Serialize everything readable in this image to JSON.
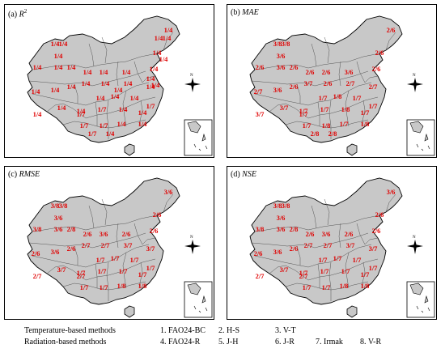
{
  "panels": [
    {
      "letter": "(a)",
      "metric": "R",
      "sup": "2",
      "labels": [
        "1/4",
        "1/4",
        "1/4",
        "1/4",
        "1/4",
        "1/4",
        "1/4",
        "1/4",
        "1/4",
        "1/4",
        "1/4",
        "1/4",
        "1/4",
        "1/4",
        "1/4",
        "1/4",
        "1/4",
        "1/4",
        "1/4",
        "1/4",
        "1/4",
        "1/7",
        "1/4",
        "1/4",
        "1/4",
        "1/7",
        "1/4",
        "1/7",
        "1/4",
        "1/4",
        "1/7",
        "1/7",
        "1/4",
        "1/4",
        "1/7",
        "1/4",
        "1/4",
        "1/4",
        "1/4",
        "1/4",
        "1/4",
        "1/4"
      ]
    },
    {
      "letter": "(b)",
      "metric": "MAE",
      "sup": "",
      "labels": [
        "3/8",
        "3/8",
        "3/6",
        "2/6",
        "3/6",
        "2/6",
        "2/6",
        "2/6",
        "3/6",
        "2/6",
        "2/6",
        "2/6",
        "2/7",
        "3/6",
        "2/6",
        "3/7",
        "2/6",
        "2/7",
        "2/7",
        "3/7",
        "3/7",
        "1/7",
        "1/7",
        "1/8",
        "1/7",
        "1/7",
        "1/7",
        "1/7",
        "1/8",
        "1/7",
        "1/7",
        "1/8",
        "1/7",
        "1/8",
        "2/8",
        "2/8"
      ]
    },
    {
      "letter": "(c)",
      "metric": "RMSE",
      "sup": "",
      "labels": [
        "3/8",
        "3/8",
        "3/6",
        "3/8",
        "3/6",
        "2/8",
        "2/6",
        "3/6",
        "2/6",
        "2/6",
        "3/6",
        "2/6",
        "2/6",
        "3/6",
        "2/6",
        "2/7",
        "2/7",
        "3/7",
        "3/7",
        "2/7",
        "3/7",
        "2/7",
        "1/7",
        "1/7",
        "1/7",
        "1/7",
        "1/7",
        "1/7",
        "1/7",
        "1/7",
        "1/7",
        "1/7",
        "1/8",
        "1/8"
      ]
    },
    {
      "letter": "(d)",
      "metric": "NSE",
      "sup": "",
      "labels": [
        "3/8",
        "3/8",
        "3/6",
        "3/8",
        "3/6",
        "2/8",
        "2/6",
        "3/6",
        "2/6",
        "2/6",
        "3/6",
        "2/6",
        "2/6",
        "3/6",
        "2/6",
        "2/7",
        "2/7",
        "3/7",
        "3/7",
        "2/7",
        "3/7",
        "2/7",
        "1/7",
        "1/7",
        "1/7",
        "1/7",
        "1/7",
        "1/7",
        "1/7",
        "1/7",
        "1/7",
        "1/7",
        "1/8",
        "1/8"
      ]
    }
  ],
  "compass": {
    "north": "N"
  },
  "legend": {
    "row1": {
      "title": "Temperature-based methods",
      "m1": "1. FAO24-BC",
      "m2": "2. H-S",
      "m3": "3. V-T"
    },
    "row2": {
      "title": "Radiation-based methods",
      "m4": "4. FAO24-R",
      "m5": "5. J-H",
      "m6": "6. J-R",
      "m7": "7. Irmak",
      "m8": "8. V-R"
    }
  },
  "colors": {
    "land": "#c8c8c8",
    "border": "#555555",
    "label": "#e00000"
  }
}
